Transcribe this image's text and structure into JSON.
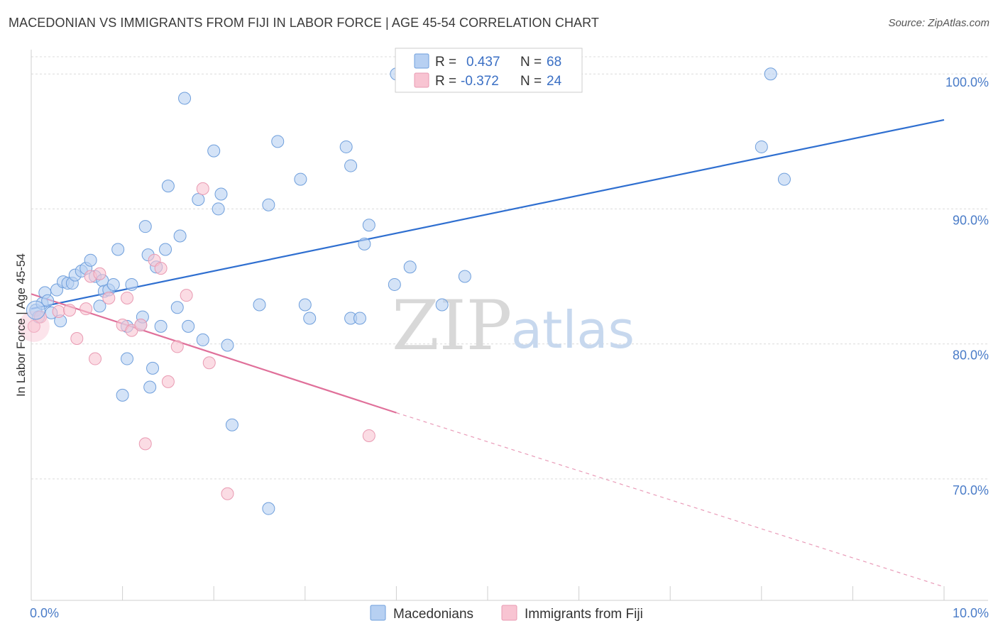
{
  "title": "MACEDONIAN VS IMMIGRANTS FROM FIJI IN LABOR FORCE | AGE 45-54 CORRELATION CHART",
  "source": "Source: ZipAtlas.com",
  "watermark": {
    "zip": "ZIP",
    "atlas": "atlas"
  },
  "colors": {
    "blue_fill": "#b7d0f2",
    "blue_stroke": "#6f9fdc",
    "blue_line": "#2f6fd0",
    "pink_fill": "#f8c4d2",
    "pink_stroke": "#e99ab2",
    "pink_line": "#e0709a",
    "grid": "#dcdcdc",
    "axis_text": "#4a7cc8"
  },
  "legend": {
    "rows": [
      {
        "r_label": "R =",
        "r_value": "0.437",
        "n_label": "N =",
        "n_value": "68"
      },
      {
        "r_label": "R =",
        "r_value": "-0.372",
        "n_label": "N =",
        "n_value": "24"
      }
    ]
  },
  "bottom_legend": [
    "Macedonians",
    "Immigrants from Fiji"
  ],
  "chart_data": {
    "type": "scatter",
    "title": "MACEDONIAN VS IMMIGRANTS FROM FIJI IN LABOR FORCE | AGE 45-54 CORRELATION CHART",
    "xlabel": "",
    "ylabel": "In Labor Force | Age 45-54",
    "xlim": [
      0,
      10
    ],
    "ylim": [
      61,
      101.8
    ],
    "x_tick_labels": [
      "0.0%",
      "10.0%"
    ],
    "y_ticks": [
      70,
      80,
      90,
      100
    ],
    "y_tick_labels": [
      "70.0%",
      "80.0%",
      "90.0%",
      "100.0%"
    ],
    "x_minor_ticks": [
      0,
      1,
      2,
      3,
      4,
      5,
      6,
      7,
      8,
      9,
      10
    ],
    "grid": true,
    "series": [
      {
        "name": "Macedonians",
        "color": "blue",
        "points": [
          [
            0.05,
            82.5
          ],
          [
            0.08,
            82.0
          ],
          [
            0.12,
            83.0
          ],
          [
            0.15,
            83.8
          ],
          [
            0.18,
            83.2
          ],
          [
            0.22,
            82.3
          ],
          [
            0.28,
            84.0
          ],
          [
            0.32,
            81.7
          ],
          [
            0.35,
            84.6
          ],
          [
            0.4,
            84.5
          ],
          [
            0.45,
            84.5
          ],
          [
            0.48,
            85.1
          ],
          [
            0.55,
            85.4
          ],
          [
            0.6,
            85.6
          ],
          [
            0.65,
            86.2
          ],
          [
            0.7,
            85.0
          ],
          [
            0.75,
            82.8
          ],
          [
            0.78,
            84.7
          ],
          [
            0.8,
            83.9
          ],
          [
            0.85,
            84.0
          ],
          [
            0.9,
            84.4
          ],
          [
            0.95,
            87.0
          ],
          [
            1.0,
            76.2
          ],
          [
            1.05,
            81.3
          ],
          [
            1.05,
            78.9
          ],
          [
            1.1,
            84.4
          ],
          [
            1.2,
            81.4
          ],
          [
            1.22,
            82.0
          ],
          [
            1.25,
            88.7
          ],
          [
            1.28,
            86.6
          ],
          [
            1.3,
            76.8
          ],
          [
            1.33,
            78.2
          ],
          [
            1.37,
            85.7
          ],
          [
            1.42,
            81.3
          ],
          [
            1.47,
            87.0
          ],
          [
            1.5,
            91.7
          ],
          [
            1.6,
            82.7
          ],
          [
            1.63,
            88.0
          ],
          [
            1.68,
            98.2
          ],
          [
            1.72,
            81.3
          ],
          [
            1.83,
            90.7
          ],
          [
            1.88,
            80.3
          ],
          [
            2.0,
            94.3
          ],
          [
            2.05,
            90.0
          ],
          [
            2.08,
            91.1
          ],
          [
            2.15,
            79.9
          ],
          [
            2.2,
            74.0
          ],
          [
            2.5,
            82.9
          ],
          [
            2.6,
            90.3
          ],
          [
            2.6,
            67.8
          ],
          [
            2.7,
            95.0
          ],
          [
            2.95,
            92.2
          ],
          [
            3.0,
            82.9
          ],
          [
            3.05,
            81.9
          ],
          [
            3.45,
            94.6
          ],
          [
            3.5,
            93.2
          ],
          [
            3.5,
            81.9
          ],
          [
            3.6,
            81.9
          ],
          [
            3.65,
            87.4
          ],
          [
            3.7,
            88.8
          ],
          [
            3.98,
            84.4
          ],
          [
            4.0,
            100.0
          ],
          [
            4.15,
            85.7
          ],
          [
            4.5,
            82.9
          ],
          [
            4.75,
            85.0
          ],
          [
            8.0,
            94.6
          ],
          [
            8.1,
            100.0
          ],
          [
            8.25,
            92.2
          ]
        ],
        "trend": {
          "x": [
            0,
            10
          ],
          "y": [
            82.6,
            96.6
          ]
        }
      },
      {
        "name": "Immigrants from Fiji",
        "color": "pink",
        "points": [
          [
            0.03,
            81.3
          ],
          [
            0.1,
            82.0
          ],
          [
            0.3,
            82.4
          ],
          [
            0.42,
            82.5
          ],
          [
            0.5,
            80.4
          ],
          [
            0.6,
            82.6
          ],
          [
            0.65,
            85.0
          ],
          [
            0.7,
            78.9
          ],
          [
            0.75,
            85.2
          ],
          [
            0.85,
            83.4
          ],
          [
            1.0,
            81.4
          ],
          [
            1.05,
            83.4
          ],
          [
            1.1,
            81.0
          ],
          [
            1.2,
            81.4
          ],
          [
            1.25,
            72.6
          ],
          [
            1.35,
            86.2
          ],
          [
            1.42,
            85.6
          ],
          [
            1.5,
            77.2
          ],
          [
            1.6,
            79.8
          ],
          [
            1.7,
            83.6
          ],
          [
            1.88,
            91.5
          ],
          [
            1.95,
            78.6
          ],
          [
            2.15,
            68.9
          ],
          [
            3.7,
            73.2
          ]
        ],
        "trend": {
          "x": [
            0,
            4.0
          ],
          "y": [
            83.7,
            74.9
          ]
        },
        "trend_dashed": {
          "x": [
            4.0,
            10
          ],
          "y": [
            74.9,
            62.0
          ]
        }
      }
    ]
  }
}
